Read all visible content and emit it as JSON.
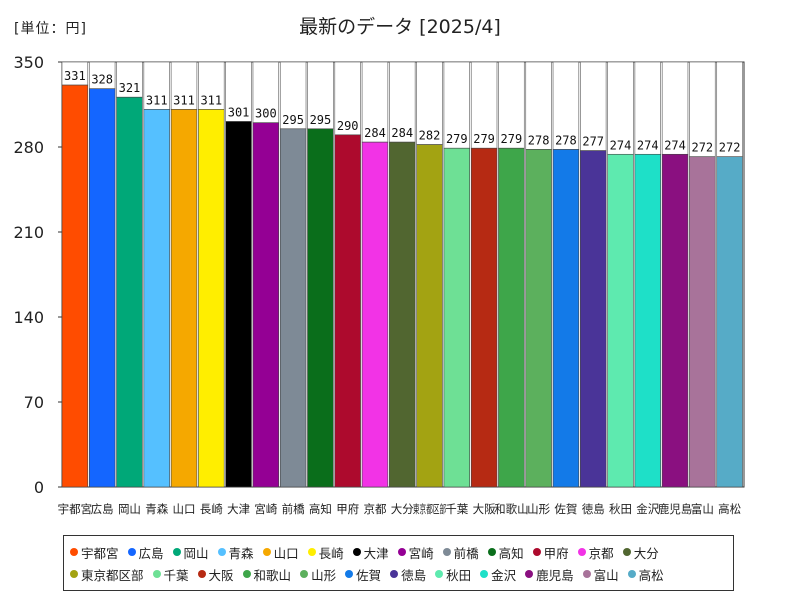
{
  "unit_label": "[単位：円]",
  "chart_data": {
    "type": "bar",
    "title": "最新のデータ [2025/4]",
    "ylim": [
      0,
      350
    ],
    "yticks": [
      0,
      70,
      140,
      210,
      280,
      350
    ],
    "grid": false,
    "legend_position": "bottom",
    "categories": [
      "宇都宮",
      "広島",
      "岡山",
      "青森",
      "山口",
      "長崎",
      "大津",
      "宮崎",
      "前橋",
      "高知",
      "甲府",
      "京都",
      "大分",
      "東京都区部",
      "千葉",
      "大阪",
      "和歌山",
      "山形",
      "佐賀",
      "徳島",
      "秋田",
      "金沢",
      "鹿児島",
      "富山",
      "高松"
    ],
    "values": [
      331,
      328,
      321,
      311,
      311,
      311,
      301,
      300,
      295,
      295,
      290,
      284,
      284,
      282,
      279,
      279,
      279,
      278,
      278,
      277,
      274,
      274,
      274,
      272,
      272
    ],
    "colors": [
      "#ff4c00",
      "#1466ff",
      "#00a878",
      "#55c0ff",
      "#f5a800",
      "#ffee00",
      "#000000",
      "#940094",
      "#7e8a96",
      "#0a6e1b",
      "#ad0a2d",
      "#f233e6",
      "#516630",
      "#a3a312",
      "#6ee095",
      "#b62a13",
      "#3ea64a",
      "#5cb05d",
      "#137ae8",
      "#4a3498",
      "#5eeaaf",
      "#1ee0c8",
      "#8a1080",
      "#a8739a",
      "#56abc7"
    ]
  }
}
